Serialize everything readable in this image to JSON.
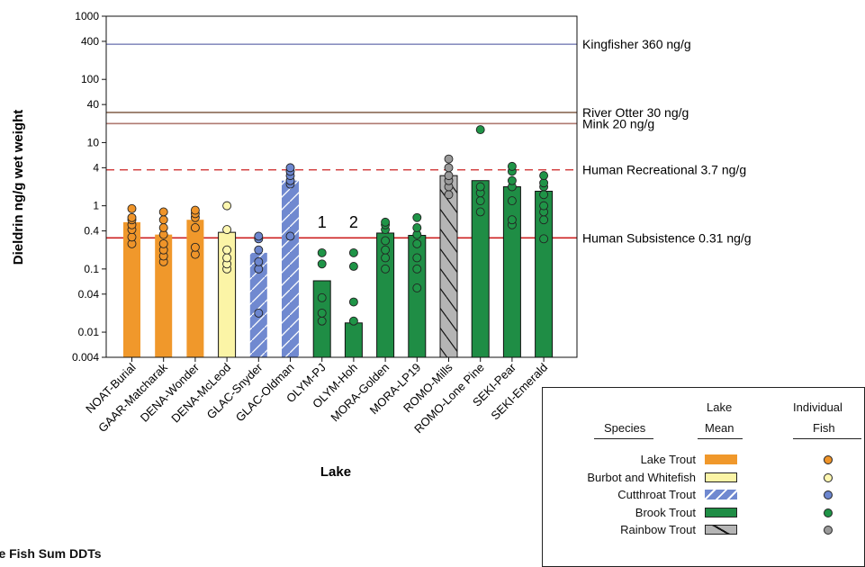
{
  "chart_data": {
    "type": "bar",
    "yscale": "log",
    "ylim": [
      0.004,
      1000
    ],
    "ylabel": "Dieldrin ng/g wet weight",
    "xlabel": "Lake",
    "yticks": [
      "0.004",
      "0.01",
      "0.04",
      "0.1",
      "0.4",
      "1",
      "4",
      "10",
      "40",
      "100",
      "400",
      "1000"
    ],
    "ytick_values": [
      0.004,
      0.01,
      0.04,
      0.1,
      0.4,
      1,
      4,
      10,
      40,
      100,
      400,
      1000
    ],
    "categories": [
      "NOAT-Burial",
      "GAAR-Matcharak",
      "DENA-Wonder",
      "DENA-McLeod",
      "GLAC-Snyder",
      "GLAC-Oldman",
      "OLYM-PJ",
      "OLYM-Hoh",
      "MORA-Golden",
      "MORA-LP19",
      "ROMO-Mills",
      "ROMO-Lone Pine",
      "SEKI-Pear",
      "SEKI-Emerald"
    ],
    "species": [
      "Lake Trout",
      "Lake Trout",
      "Lake Trout",
      "Burbot and Whitefish",
      "Cutthroat Trout",
      "Cutthroat Trout",
      "Brook Trout",
      "Brook Trout",
      "Brook Trout",
      "Brook Trout",
      "Rainbow Trout",
      "Brook Trout",
      "Brook Trout",
      "Brook Trout"
    ],
    "lake_means": [
      0.55,
      0.35,
      0.6,
      0.38,
      0.18,
      2.5,
      0.065,
      0.014,
      0.37,
      0.34,
      3.0,
      2.5,
      2.0,
      1.7
    ],
    "individual_fish": [
      [
        0.25,
        0.32,
        0.42,
        0.5,
        0.6,
        0.65,
        0.9
      ],
      [
        0.13,
        0.16,
        0.2,
        0.25,
        0.35,
        0.45,
        0.6,
        0.8
      ],
      [
        0.17,
        0.22,
        0.45,
        0.65,
        0.75,
        0.85
      ],
      [
        0.1,
        0.12,
        0.15,
        0.2,
        0.42,
        1.0
      ],
      [
        0.02,
        0.1,
        0.13,
        0.2,
        0.3,
        0.33
      ],
      [
        0.33,
        2.2,
        2.5,
        3.0,
        3.5,
        4.0
      ],
      [
        0.015,
        0.02,
        0.035,
        0.12,
        0.18
      ],
      [
        0.015,
        0.03,
        0.11,
        0.18
      ],
      [
        0.1,
        0.15,
        0.2,
        0.28,
        0.42,
        0.5,
        0.55
      ],
      [
        0.05,
        0.1,
        0.15,
        0.25,
        0.35,
        0.45,
        0.65
      ],
      [
        1.5,
        2.0,
        2.5,
        3.0,
        4.0,
        5.5
      ],
      [
        0.8,
        1.2,
        1.6,
        2.0,
        16
      ],
      [
        0.5,
        0.6,
        1.2,
        2.0,
        2.5,
        3.5,
        4.2
      ],
      [
        0.3,
        0.6,
        0.8,
        1.0,
        1.5,
        2.0,
        2.3,
        3.0
      ]
    ],
    "bar_labels": [
      {
        "category": "OLYM-PJ",
        "text": "1"
      },
      {
        "category": "OLYM-Hoh",
        "text": "2"
      }
    ],
    "reference_lines": [
      {
        "label": "Kingfisher 360 ng/g",
        "value": 360,
        "color": "#8a8fc0",
        "style": "solid"
      },
      {
        "label": "River Otter 30 ng/g",
        "value": 30,
        "color": "#8a6a55",
        "style": "solid"
      },
      {
        "label": "Mink 20 ng/g",
        "value": 20,
        "color": "#b07a72",
        "style": "solid"
      },
      {
        "label": "Human Recreational 3.7 ng/g",
        "value": 3.7,
        "color": "#cc2222",
        "style": "dashed"
      },
      {
        "label": "Human Subsistence 0.31 ng/g",
        "value": 0.31,
        "color": "#cc2222",
        "style": "solid"
      }
    ]
  },
  "colors": {
    "Lake Trout": "#f0982b",
    "Burbot and Whitefish": "#fbf4a6",
    "Cutthroat Trout": "#7089d0",
    "Brook Trout": "#1f8d45",
    "Rainbow Trout": "#b5b5b5",
    "dot_Lake Trout": "#ef9429",
    "dot_Burbot and Whitefish": "#fdf7b0",
    "dot_Cutthroat Trout": "#6c86cf",
    "dot_Brook Trout": "#1f9447",
    "dot_Rainbow Trout": "#9a9a9a"
  },
  "legend": {
    "header_species": "Species",
    "header_lake": "Lake",
    "header_mean": "Mean",
    "header_individual": "Individual",
    "header_fish": "Fish",
    "entries": [
      "Lake Trout",
      "Burbot and Whitefish",
      "Cutthroat Trout",
      "Brook Trout",
      "Rainbow Trout"
    ]
  },
  "next_title": "ole Fish Sum DDTs"
}
